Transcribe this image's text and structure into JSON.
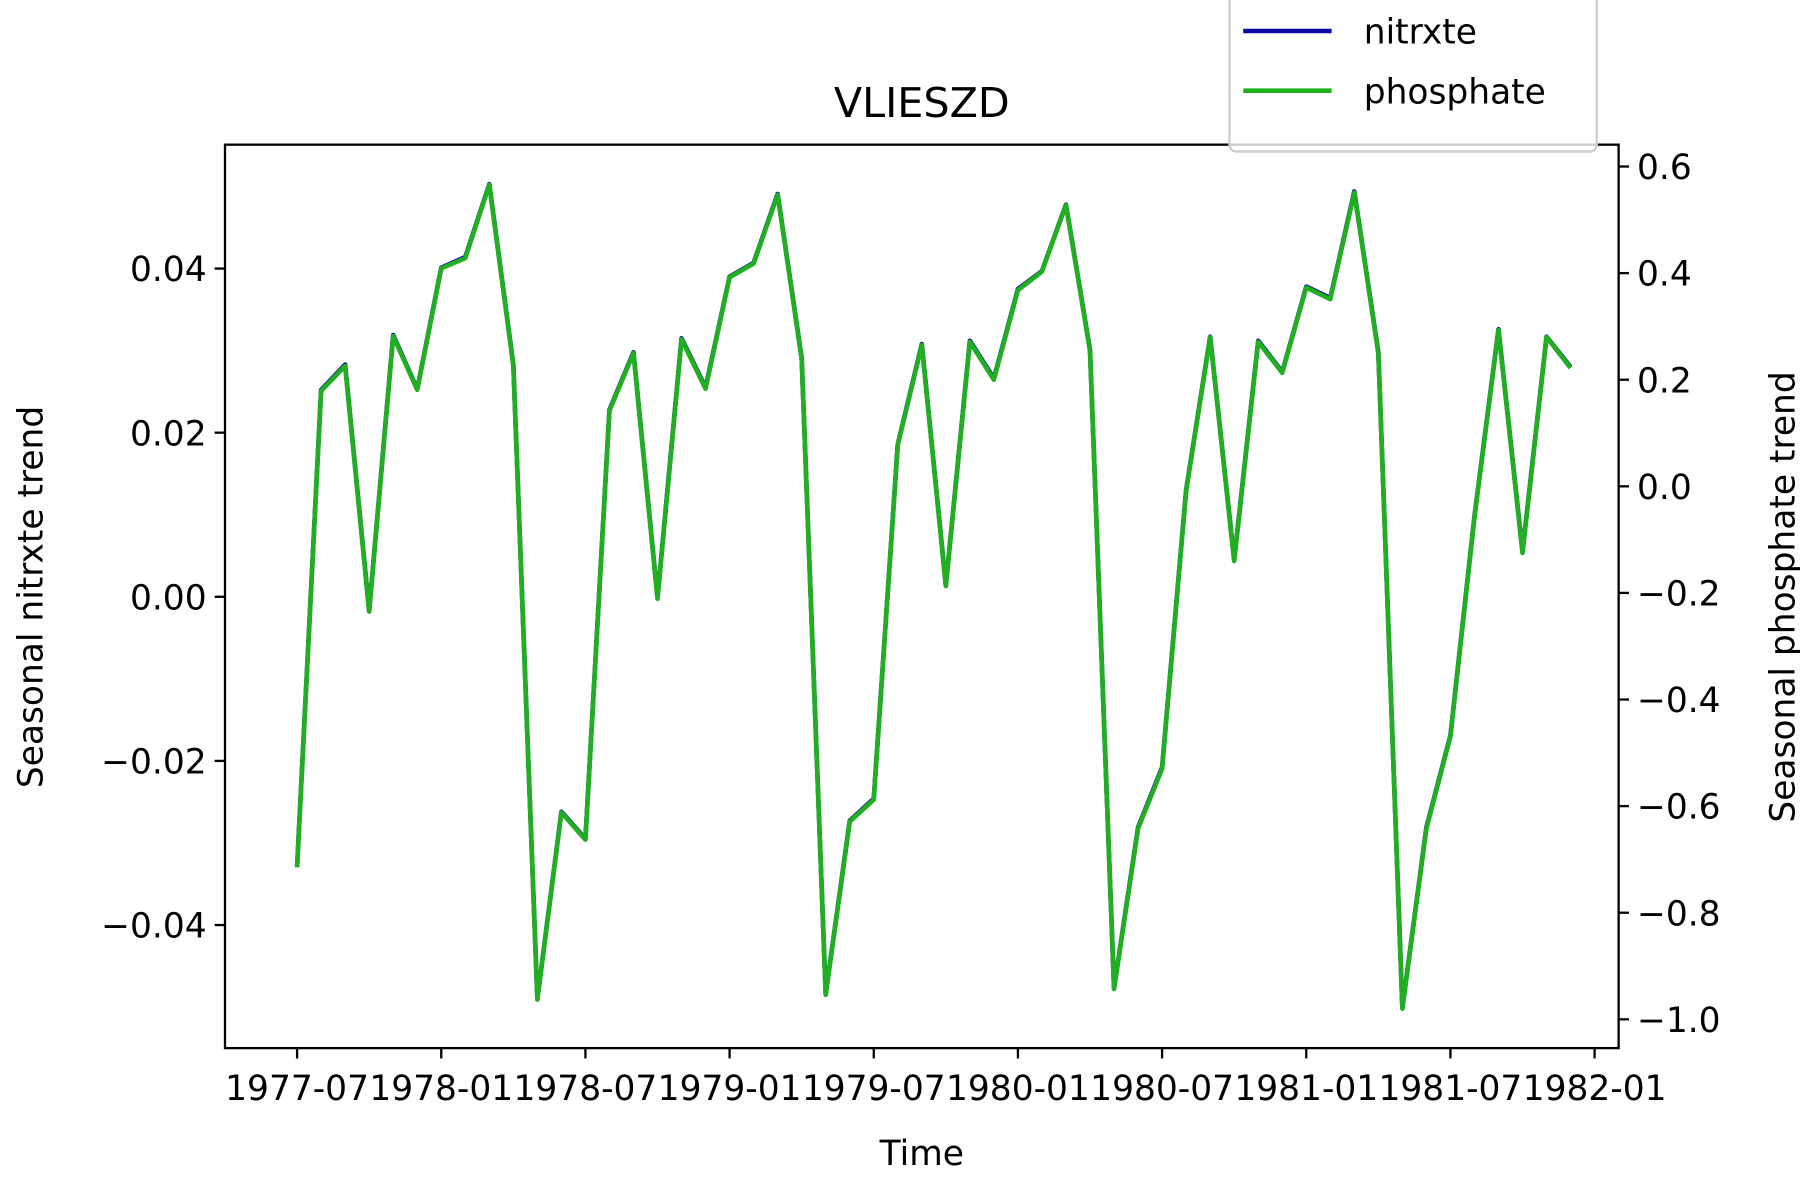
{
  "chart_data": {
    "type": "line",
    "title": "VLIESZD",
    "x_label": "Time",
    "y_label": "Seasonal nitrxte trend",
    "y2_label": "Seasonal phosphate trend",
    "x": [
      "1977-07",
      "1977-08",
      "1977-09",
      "1977-10",
      "1977-11",
      "1977-12",
      "1978-01",
      "1978-02",
      "1978-03",
      "1978-04",
      "1978-05",
      "1978-06",
      "1978-07",
      "1978-08",
      "1978-09",
      "1978-10",
      "1978-11",
      "1978-12",
      "1979-01",
      "1979-02",
      "1979-03",
      "1979-04",
      "1979-05",
      "1979-06",
      "1979-07",
      "1979-08",
      "1979-09",
      "1979-10",
      "1979-11",
      "1979-12",
      "1980-01",
      "1980-02",
      "1980-03",
      "1980-04",
      "1980-05",
      "1980-06",
      "1980-07",
      "1980-08",
      "1980-09",
      "1980-10",
      "1980-11",
      "1980-12",
      "1981-01",
      "1981-02",
      "1981-03",
      "1981-04",
      "1981-05",
      "1981-06",
      "1981-07",
      "1981-08",
      "1981-09",
      "1981-10",
      "1981-11",
      "1981-12"
    ],
    "series": [
      {
        "name": "nitrxte",
        "color": "#0a0aa5",
        "values": [
          -0.0329,
          0.0252,
          0.0283,
          -0.0017,
          0.0319,
          0.0253,
          0.0401,
          0.0414,
          0.0503,
          0.0283,
          -0.049,
          -0.0262,
          -0.0295,
          0.0228,
          0.0298,
          -0.0001,
          0.0315,
          0.0255,
          0.039,
          0.0407,
          0.0491,
          0.0291,
          -0.0484,
          -0.0273,
          -0.0246,
          0.0186,
          0.0308,
          0.0014,
          0.0312,
          0.0266,
          0.0375,
          0.0397,
          0.0478,
          0.0301,
          -0.0477,
          -0.0281,
          -0.0208,
          0.013,
          0.0317,
          0.0045,
          0.0312,
          0.0274,
          0.0378,
          0.0364,
          0.0494,
          0.0298,
          -0.0501,
          -0.0281,
          -0.0169,
          0.0098,
          0.0326,
          0.0055,
          0.0317,
          0.028
        ]
      },
      {
        "name": "phosphate",
        "color": "#1faf1f",
        "axis": "y2",
        "values": [
          -0.715,
          0.179,
          0.226,
          -0.235,
          0.282,
          0.181,
          0.409,
          0.428,
          0.566,
          0.226,
          -0.963,
          -0.612,
          -0.663,
          0.142,
          0.25,
          -0.211,
          0.276,
          0.183,
          0.392,
          0.418,
          0.547,
          0.239,
          -0.954,
          -0.629,
          -0.588,
          0.078,
          0.265,
          -0.187,
          0.271,
          0.2,
          0.368,
          0.403,
          0.528,
          0.254,
          -0.943,
          -0.642,
          -0.53,
          -0.009,
          0.28,
          -0.14,
          0.271,
          0.213,
          0.373,
          0.351,
          0.551,
          0.25,
          -0.98,
          -0.642,
          -0.469,
          -0.058,
          0.293,
          -0.125,
          0.28,
          0.222
        ]
      }
    ],
    "xlim": [
      "1977-04",
      "1982-02"
    ],
    "xticks": [
      "1977-07",
      "1978-01",
      "1978-07",
      "1979-01",
      "1979-07",
      "1980-01",
      "1980-07",
      "1981-01",
      "1981-07",
      "1982-01"
    ],
    "ylim": [
      -0.055,
      0.0551
    ],
    "yticks": [
      {
        "value": -0.04,
        "label": "−0.04"
      },
      {
        "value": -0.02,
        "label": "−0.02"
      },
      {
        "value": 0,
        "label": "0.00"
      },
      {
        "value": 0.02,
        "label": "0.02"
      },
      {
        "value": 0.04,
        "label": "0.04"
      }
    ],
    "y2lim": [
      -1.054,
      0.641
    ],
    "y2ticks": [
      {
        "value": -1.0,
        "label": "−1.0"
      },
      {
        "value": -0.8,
        "label": "−0.8"
      },
      {
        "value": -0.6,
        "label": "−0.6"
      },
      {
        "value": -0.4,
        "label": "−0.4"
      },
      {
        "value": -0.2,
        "label": "−0.2"
      },
      {
        "value": 0,
        "label": "0.0"
      },
      0.2,
      0.4,
      0.6
    ],
    "legend": "upper right"
  }
}
